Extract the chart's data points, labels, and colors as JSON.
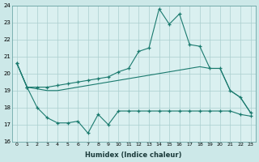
{
  "xlabel": "Humidex (Indice chaleur)",
  "ylim": [
    16,
    24
  ],
  "xlim": [
    -0.5,
    23.5
  ],
  "yticks": [
    16,
    17,
    18,
    19,
    20,
    21,
    22,
    23,
    24
  ],
  "xticks": [
    0,
    1,
    2,
    3,
    4,
    5,
    6,
    7,
    8,
    9,
    10,
    11,
    12,
    13,
    14,
    15,
    16,
    17,
    18,
    19,
    20,
    21,
    22,
    23
  ],
  "line_color": "#1a7a6e",
  "bg_color": "#cce8e8",
  "grid_color": "#aacece",
  "plot_bg": "#daf0f0",
  "curve1_x": [
    0,
    1,
    2,
    3,
    4,
    5,
    6,
    7,
    8,
    9,
    10,
    11,
    12,
    13,
    14,
    15,
    16,
    17,
    18,
    19,
    20,
    21,
    22,
    23
  ],
  "curve1_y": [
    20.6,
    19.2,
    19.2,
    19.2,
    19.3,
    19.4,
    19.5,
    19.6,
    19.7,
    19.8,
    20.1,
    20.3,
    21.3,
    21.5,
    23.8,
    22.9,
    23.5,
    21.7,
    21.6,
    20.3,
    20.3,
    19.0,
    18.6,
    17.7
  ],
  "curve2_x": [
    0,
    1,
    2,
    3,
    4,
    5,
    6,
    7,
    8,
    9,
    10,
    11,
    12,
    13,
    14,
    15,
    16,
    17,
    18,
    19,
    20,
    21,
    22,
    23
  ],
  "curve2_y": [
    20.6,
    19.2,
    19.1,
    19.0,
    19.0,
    19.1,
    19.2,
    19.3,
    19.4,
    19.5,
    19.6,
    19.7,
    19.8,
    19.9,
    20.0,
    20.1,
    20.2,
    20.3,
    20.4,
    20.3,
    20.3,
    19.0,
    18.6,
    17.7
  ],
  "curve3_x": [
    0,
    1,
    2,
    3,
    4,
    5,
    6,
    7,
    8,
    9,
    10,
    11,
    12,
    13,
    14,
    15,
    16,
    17,
    18,
    19,
    20,
    21,
    22,
    23
  ],
  "curve3_y": [
    20.6,
    19.2,
    18.0,
    17.4,
    17.1,
    17.1,
    17.2,
    16.5,
    17.6,
    17.0,
    17.8,
    17.8,
    17.8,
    17.8,
    17.8,
    17.8,
    17.8,
    17.8,
    17.8,
    17.8,
    17.8,
    17.8,
    17.6,
    17.5
  ]
}
